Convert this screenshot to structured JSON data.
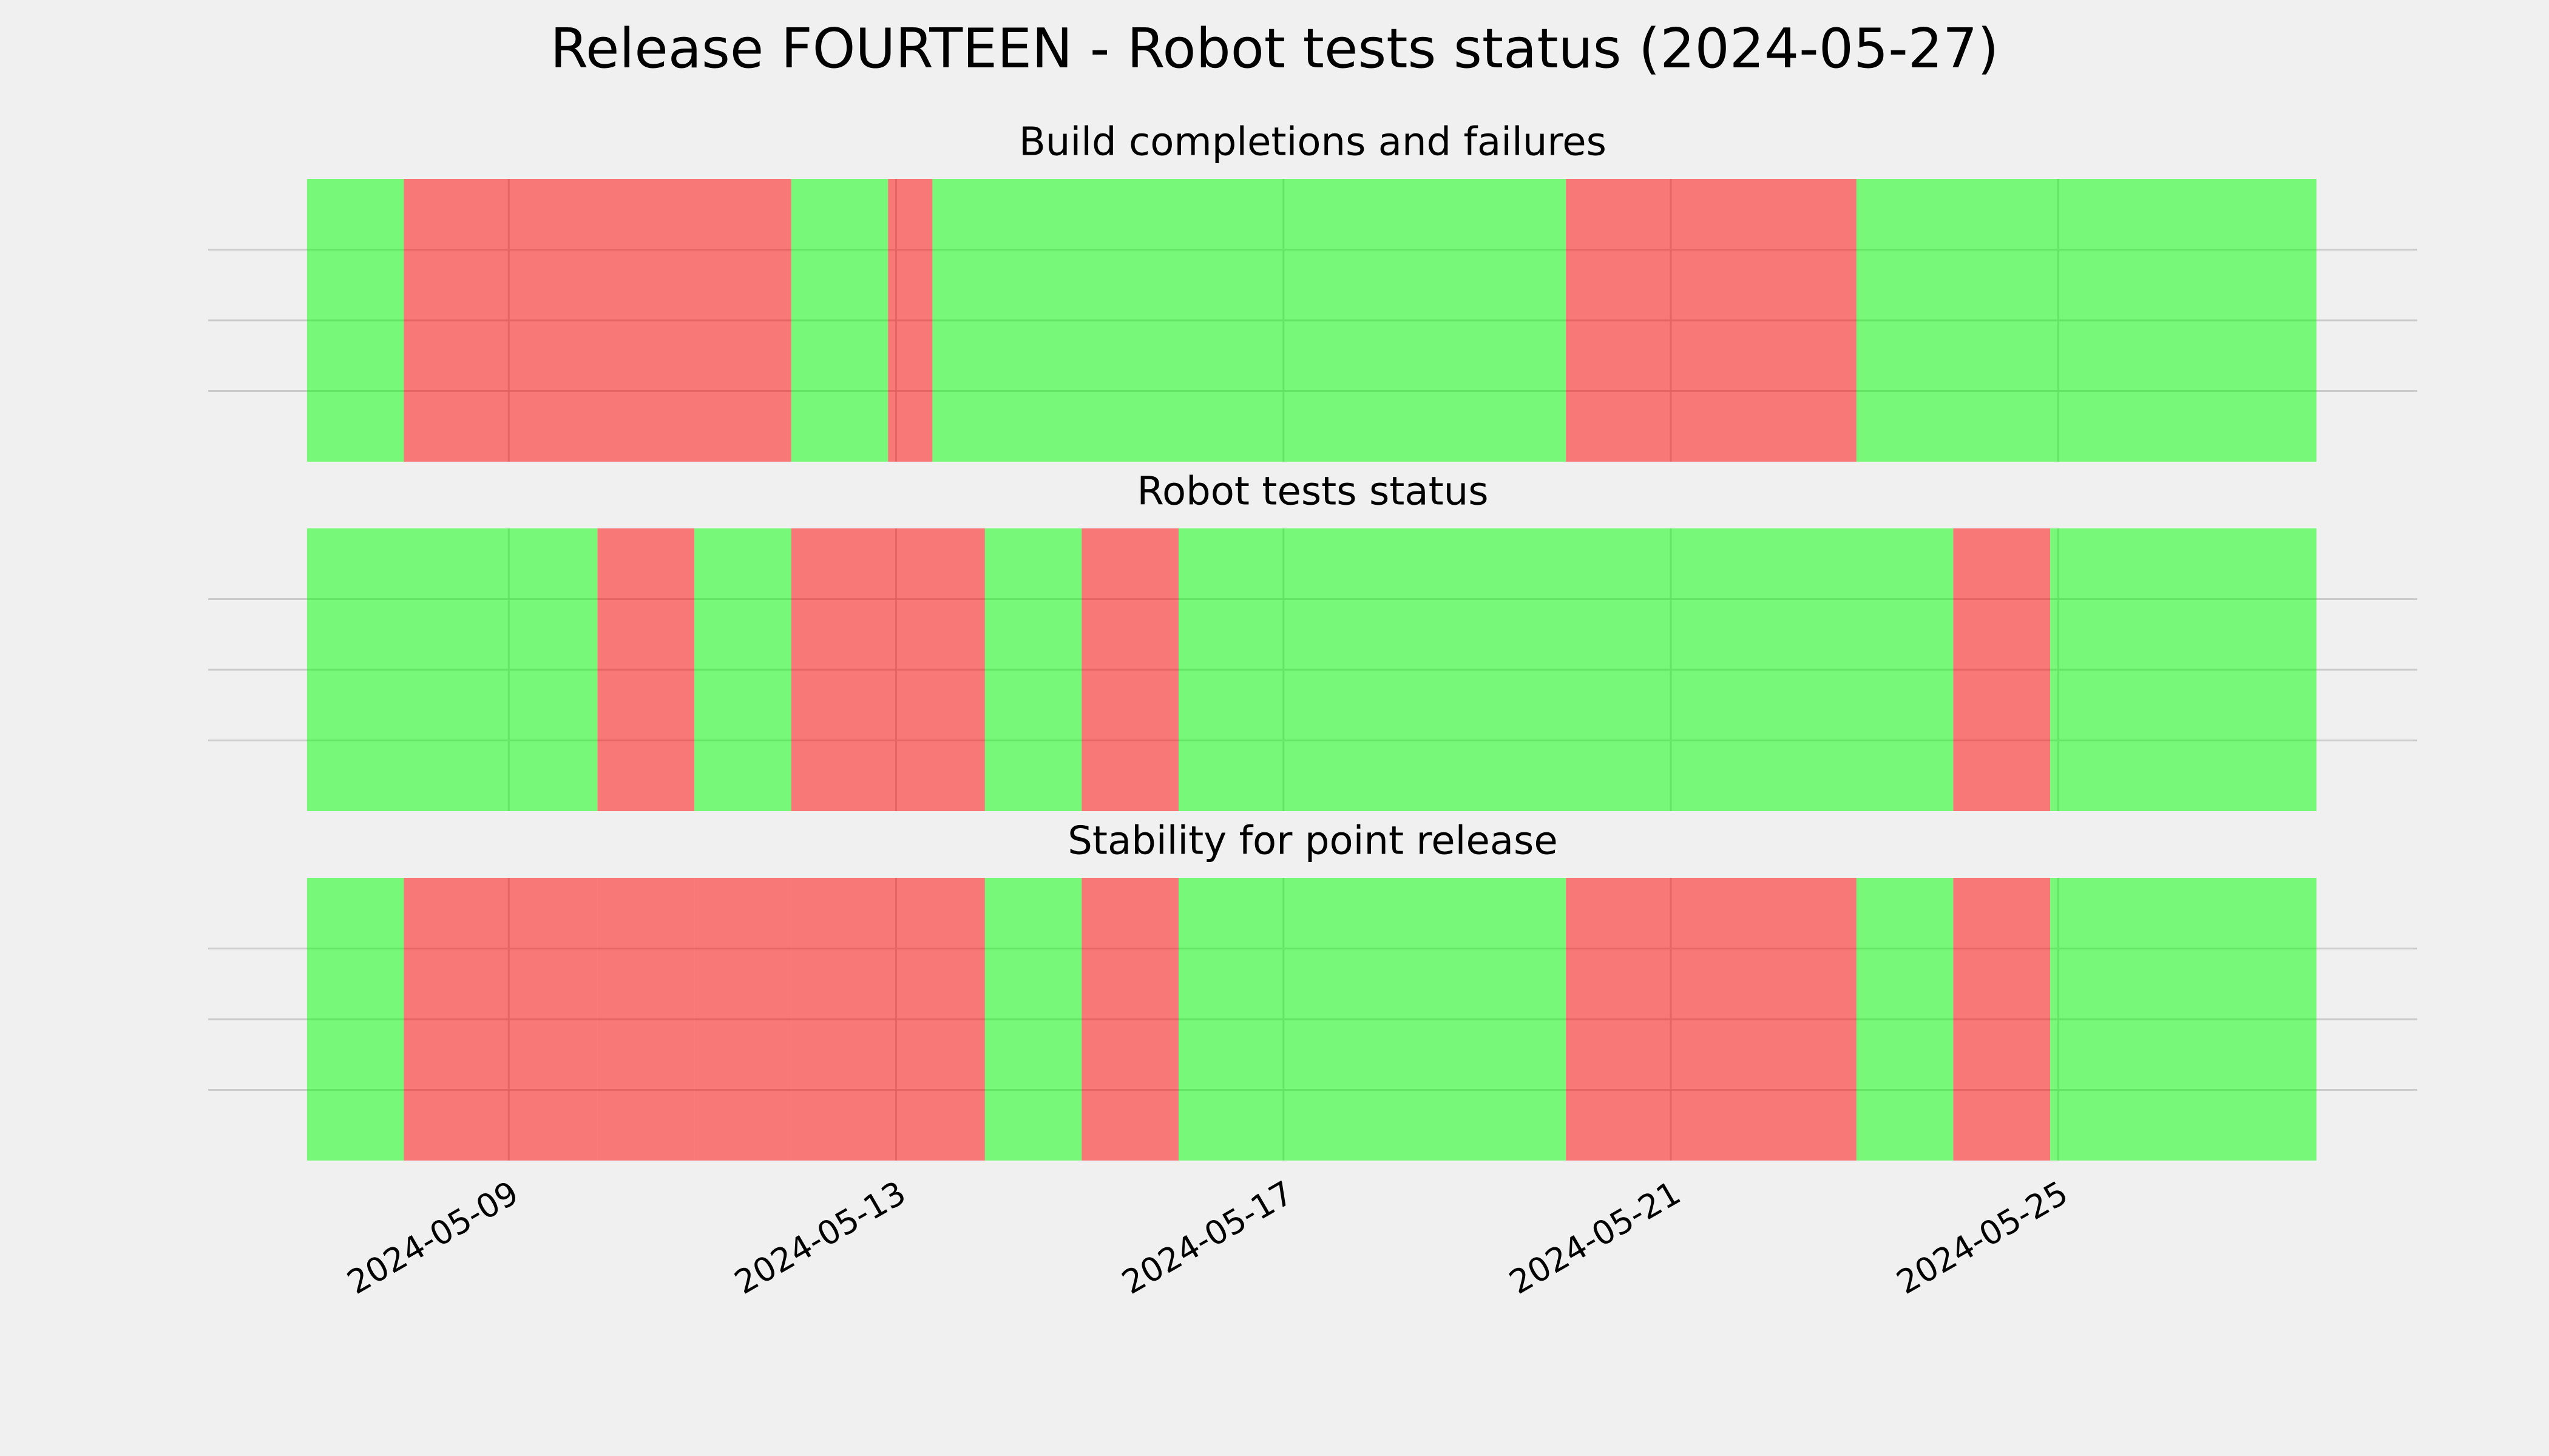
{
  "title": "Release FOURTEEN - Robot tests status (2024-05-27)",
  "chart_data": [
    {
      "type": "timeline",
      "title": "Build completions and failures",
      "xlim": [
        "2024-05-05T21:30",
        "2024-05-28T17:00"
      ],
      "ylim": [
        0,
        1
      ],
      "yticks": [
        0.25,
        0.5,
        0.75
      ],
      "xticks": [
        "2024-05-09",
        "2024-05-13",
        "2024-05-17",
        "2024-05-21",
        "2024-05-25"
      ],
      "grid": true,
      "alpha": 0.5,
      "spans": [
        {
          "start": "2024-05-06T22:00",
          "end": "2024-05-07T22:00",
          "color": "#00ff00"
        },
        {
          "start": "2024-05-07T22:00",
          "end": "2024-05-11T22:00",
          "color": "#ff0000"
        },
        {
          "start": "2024-05-11T22:00",
          "end": "2024-05-12T22:00",
          "color": "#00ff00"
        },
        {
          "start": "2024-05-12T22:00",
          "end": "2024-05-13T09:00",
          "color": "#ff0000"
        },
        {
          "start": "2024-05-13T09:00",
          "end": "2024-05-19T22:00",
          "color": "#00ff00"
        },
        {
          "start": "2024-05-19T22:00",
          "end": "2024-05-22T22:00",
          "color": "#ff0000"
        },
        {
          "start": "2024-05-22T22:00",
          "end": "2024-05-27T16:00",
          "color": "#00ff00"
        }
      ]
    },
    {
      "type": "timeline",
      "title": "Robot tests status",
      "xlim": [
        "2024-05-05T21:30",
        "2024-05-28T17:00"
      ],
      "ylim": [
        0,
        1
      ],
      "yticks": [
        0.25,
        0.5,
        0.75
      ],
      "xticks": [
        "2024-05-09",
        "2024-05-13",
        "2024-05-17",
        "2024-05-21",
        "2024-05-25"
      ],
      "grid": true,
      "alpha": 0.5,
      "spans": [
        {
          "start": "2024-05-06T22:00",
          "end": "2024-05-09T22:00",
          "color": "#00ff00"
        },
        {
          "start": "2024-05-09T22:00",
          "end": "2024-05-10T22:00",
          "color": "#ff0000"
        },
        {
          "start": "2024-05-10T22:00",
          "end": "2024-05-11T22:00",
          "color": "#00ff00"
        },
        {
          "start": "2024-05-11T22:00",
          "end": "2024-05-13T22:00",
          "color": "#ff0000"
        },
        {
          "start": "2024-05-13T22:00",
          "end": "2024-05-14T22:00",
          "color": "#00ff00"
        },
        {
          "start": "2024-05-14T22:00",
          "end": "2024-05-15T22:00",
          "color": "#ff0000"
        },
        {
          "start": "2024-05-15T22:00",
          "end": "2024-05-23T22:00",
          "color": "#00ff00"
        },
        {
          "start": "2024-05-23T22:00",
          "end": "2024-05-24T22:00",
          "color": "#ff0000"
        },
        {
          "start": "2024-05-24T22:00",
          "end": "2024-05-27T16:00",
          "color": "#00ff00"
        }
      ]
    },
    {
      "type": "timeline",
      "title": "Stability for point release",
      "xlim": [
        "2024-05-05T21:30",
        "2024-05-28T17:00"
      ],
      "ylim": [
        0,
        1
      ],
      "yticks": [
        0.25,
        0.5,
        0.75
      ],
      "xticks": [
        "2024-05-09",
        "2024-05-13",
        "2024-05-17",
        "2024-05-21",
        "2024-05-25"
      ],
      "grid": true,
      "alpha": 0.5,
      "spans": [
        {
          "start": "2024-05-06T22:00",
          "end": "2024-05-07T22:00",
          "color": "#00ff00"
        },
        {
          "start": "2024-05-07T22:00",
          "end": "2024-05-08T22:00",
          "color": "#ff0000"
        },
        {
          "start": "2024-05-08T22:00",
          "end": "2024-05-09T22:00",
          "color": "#ff0000"
        },
        {
          "start": "2024-05-09T22:00",
          "end": "2024-05-10T22:00",
          "color": "#ff0000"
        },
        {
          "start": "2024-05-10T22:00",
          "end": "2024-05-11T22:00",
          "color": "#ff0000"
        },
        {
          "start": "2024-05-11T22:00",
          "end": "2024-05-13T22:00",
          "color": "#ff0000"
        },
        {
          "start": "2024-05-13T22:00",
          "end": "2024-05-14T22:00",
          "color": "#00ff00"
        },
        {
          "start": "2024-05-14T22:00",
          "end": "2024-05-15T22:00",
          "color": "#ff0000"
        },
        {
          "start": "2024-05-15T22:00",
          "end": "2024-05-19T22:00",
          "color": "#00ff00"
        },
        {
          "start": "2024-05-19T22:00",
          "end": "2024-05-22T22:00",
          "color": "#ff0000"
        },
        {
          "start": "2024-05-22T22:00",
          "end": "2024-05-23T22:00",
          "color": "#00ff00"
        },
        {
          "start": "2024-05-23T22:00",
          "end": "2024-05-24T22:00",
          "color": "#ff0000"
        },
        {
          "start": "2024-05-24T22:00",
          "end": "2024-05-27T16:00",
          "color": "#00ff00"
        }
      ]
    }
  ]
}
